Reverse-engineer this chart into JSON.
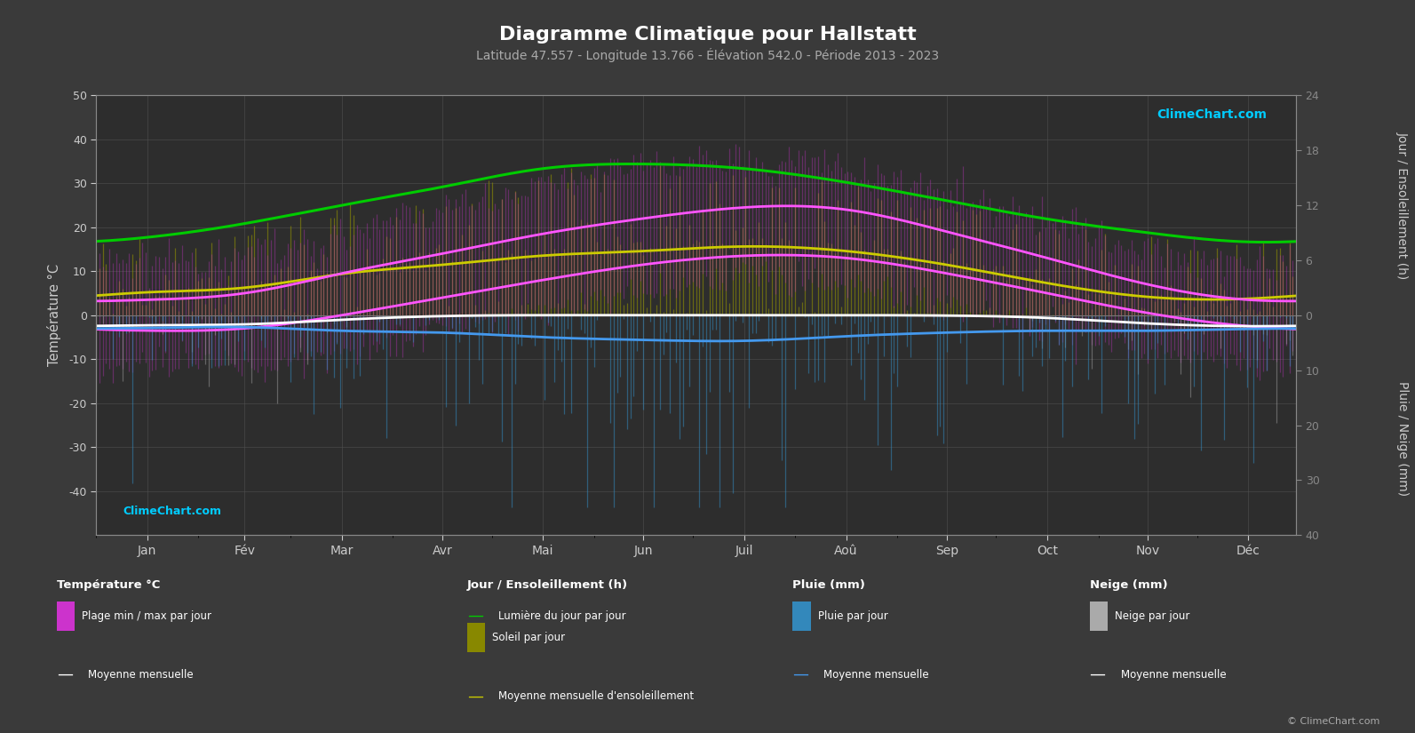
{
  "title": "Diagramme Climatique pour Hallstatt",
  "subtitle": "Latitude 47.557 - Longitude 13.766 - Élévation 542.0 - Période 2013 - 2023",
  "months": [
    "Jan",
    "Fév",
    "Mar",
    "Avr",
    "Mai",
    "Jun",
    "Juil",
    "Aoû",
    "Sep",
    "Oct",
    "Nov",
    "Déc"
  ],
  "temp_ylim": [
    -50,
    50
  ],
  "daylight_monthly": [
    8.5,
    10.0,
    12.0,
    14.0,
    16.0,
    16.5,
    16.0,
    14.5,
    12.5,
    10.5,
    9.0,
    8.0
  ],
  "sun_hours_daily_monthly": [
    2.5,
    3.0,
    4.5,
    5.5,
    6.5,
    7.0,
    7.5,
    7.0,
    5.5,
    3.5,
    2.0,
    1.8
  ],
  "temp_mean_max_monthly": [
    3.5,
    5.0,
    9.5,
    14.0,
    18.5,
    22.0,
    24.5,
    24.0,
    19.0,
    13.0,
    7.0,
    3.5
  ],
  "temp_mean_min_monthly": [
    -3.5,
    -3.0,
    0.0,
    4.0,
    8.0,
    11.5,
    13.5,
    13.0,
    9.5,
    5.0,
    0.5,
    -2.5
  ],
  "temp_abs_max_monthly": [
    12.0,
    14.0,
    18.0,
    24.0,
    30.0,
    34.0,
    35.0,
    34.0,
    28.0,
    22.0,
    15.0,
    12.0
  ],
  "temp_abs_min_monthly": [
    -12.0,
    -11.0,
    -8.0,
    -3.0,
    1.0,
    5.0,
    8.0,
    7.0,
    2.0,
    -3.0,
    -8.0,
    -11.0
  ],
  "rain_mm_monthly": [
    70,
    65,
    85,
    95,
    120,
    135,
    140,
    115,
    95,
    85,
    85,
    75
  ],
  "snow_mm_monthly": [
    55,
    50,
    25,
    5,
    0,
    0,
    0,
    0,
    2,
    15,
    45,
    60
  ],
  "colors": {
    "bg": "#3a3a3a",
    "plot_bg": "#2d2d2d",
    "grid": "#505050",
    "temp_plage": "#cc33cc",
    "sun_bars": "#999900",
    "daylight_line": "#00cc00",
    "sun_mean_line": "#cccc00",
    "temp_mean_max_line": "#ff55ff",
    "temp_mean_min_line": "#ff55ff",
    "rain_bars": "#3388bb",
    "snow_bars": "#aaaaaa",
    "rain_mean_line": "#4499ee",
    "snow_mean_line": "#ffffff",
    "axis_text": "#cccccc",
    "title_text": "#ffffff",
    "subtitle_text": "#aaaaaa",
    "logo_text": "#00ccff"
  }
}
